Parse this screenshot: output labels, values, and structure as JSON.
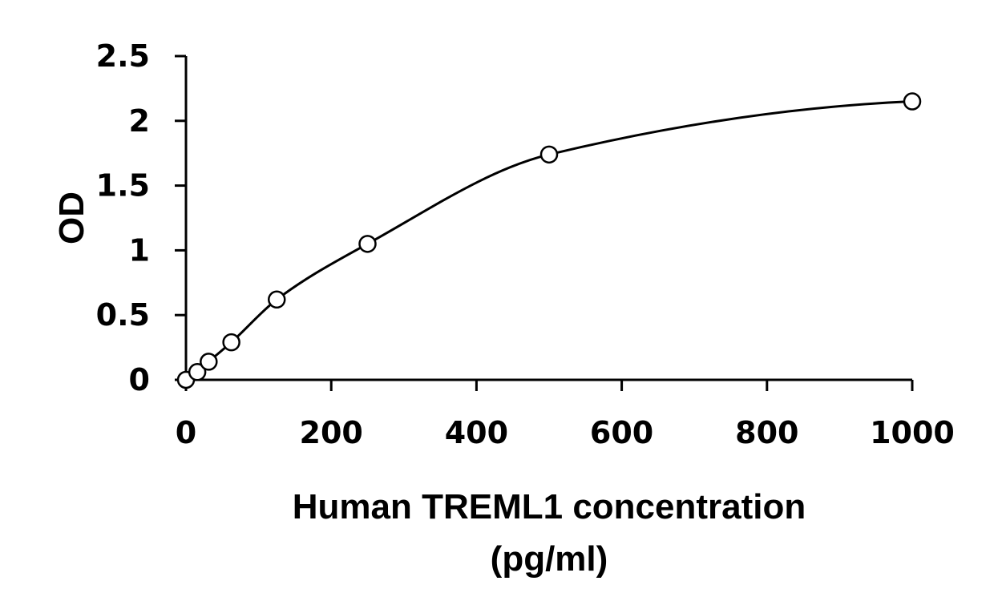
{
  "chart_data": {
    "type": "scatter",
    "xlabel_line1": "Human TREML1 concentration",
    "xlabel_line2": "(pg/ml)",
    "ylabel": "OD",
    "xlim": [
      0,
      1000
    ],
    "ylim": [
      0,
      2.5
    ],
    "x_ticks": [
      0,
      200,
      400,
      600,
      800,
      1000
    ],
    "x_tick_labels": [
      "0",
      "200",
      "400",
      "600",
      "800",
      "1000"
    ],
    "y_ticks": [
      0,
      0.5,
      1,
      1.5,
      2,
      2.5
    ],
    "y_tick_labels": [
      "0",
      "0.5",
      "1",
      "1.5",
      "2",
      "2.5"
    ],
    "grid": false,
    "legend": "none",
    "series": [
      {
        "x": [
          0,
          15.6,
          31.25,
          62.5,
          125,
          250,
          500,
          1000
        ],
        "y": [
          0,
          0.06,
          0.14,
          0.29,
          0.62,
          1.05,
          1.74,
          2.15
        ],
        "fit": "smooth-curve"
      }
    ]
  }
}
